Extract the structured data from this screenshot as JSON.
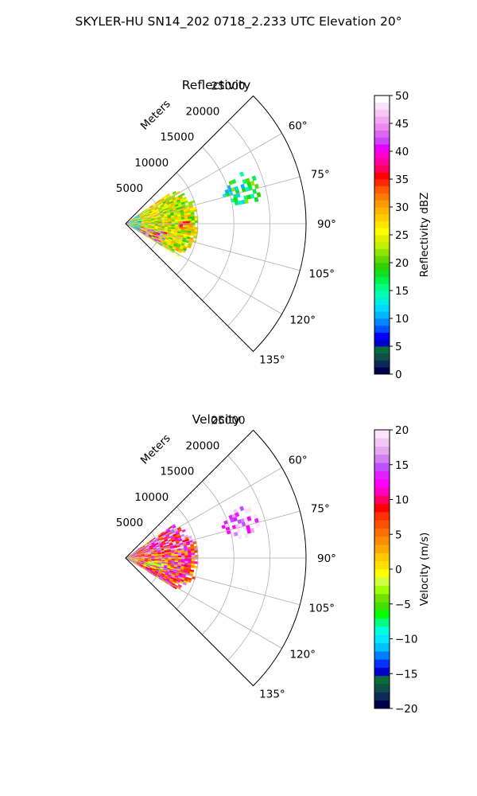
{
  "suptitle": "SKYLER-HU  SN14_202  0718_2.233 UTC Elevation 20°",
  "chart_data": [
    {
      "type": "polar-sector-heatmap",
      "title": "Reflectivity",
      "range_label": "Meters",
      "azimuth_range_deg": [
        45,
        135
      ],
      "range_max_m": 25000,
      "range_ticks": [
        5000,
        10000,
        15000,
        20000,
        25000
      ],
      "range_tick_labels": [
        "5000",
        "10000",
        "15000",
        "20000",
        "25000"
      ],
      "azimuth_ticks": [
        60,
        75,
        90,
        105,
        120,
        135
      ],
      "azimuth_tick_labels": [
        "60°",
        "75°",
        "90°",
        "105°",
        "120°",
        "135°"
      ],
      "grid": true,
      "colorbar": {
        "label": "Reflectivity dBZ",
        "min": 0,
        "max": 50,
        "ticks": [
          0,
          5,
          10,
          15,
          20,
          25,
          30,
          35,
          40,
          45,
          50
        ],
        "tick_labels": [
          "0",
          "5",
          "10",
          "15",
          "20",
          "25",
          "30",
          "35",
          "40",
          "45",
          "50"
        ],
        "colormap": "pyart_NWSRef-like (dark blue → cyan → green → yellow → red → magenta → white)"
      },
      "echo_regions": [
        {
          "description": "main storm near radar",
          "azimuth_deg": [
            55,
            120
          ],
          "range_m": [
            0,
            10000
          ],
          "dominant_value": 25,
          "peak_value": 45
        },
        {
          "description": "cell near 90° azimuth",
          "azimuth_deg": [
            86,
            94
          ],
          "range_m": [
            7000,
            9000
          ],
          "dominant_value": 33
        },
        {
          "description": "distant echo",
          "azimuth_deg": [
            66,
            80
          ],
          "range_m": [
            14000,
            19000
          ],
          "dominant_value": 16
        }
      ]
    },
    {
      "type": "polar-sector-heatmap",
      "title": "Velocity",
      "range_label": "Meters",
      "azimuth_range_deg": [
        45,
        135
      ],
      "range_max_m": 25000,
      "range_ticks": [
        5000,
        10000,
        15000,
        20000,
        25000
      ],
      "range_tick_labels": [
        "5000",
        "10000",
        "15000",
        "20000",
        "25000"
      ],
      "azimuth_ticks": [
        60,
        75,
        90,
        105,
        120,
        135
      ],
      "azimuth_tick_labels": [
        "60°",
        "75°",
        "90°",
        "105°",
        "120°",
        "135°"
      ],
      "grid": true,
      "colorbar": {
        "label": "Velocity (m/s)",
        "min": -20,
        "max": 20,
        "ticks": [
          -20,
          -15,
          -10,
          -5,
          0,
          5,
          10,
          15,
          20
        ],
        "tick_labels": [
          "−20",
          "−15",
          "−10",
          "−5",
          "0",
          "5",
          "10",
          "15",
          "20"
        ],
        "colormap": "pyart_BuDRd18-like (navy → cyan → green → yellow → orange → red → magenta → white)"
      },
      "echo_regions": [
        {
          "description": "main storm near radar",
          "azimuth_deg": [
            55,
            120
          ],
          "range_m": [
            0,
            10000
          ],
          "dominant_value": 5,
          "peak_value": 15
        },
        {
          "description": "distant echo",
          "azimuth_deg": [
            66,
            80
          ],
          "range_m": [
            14000,
            19000
          ],
          "dominant_value": 10
        }
      ]
    }
  ]
}
